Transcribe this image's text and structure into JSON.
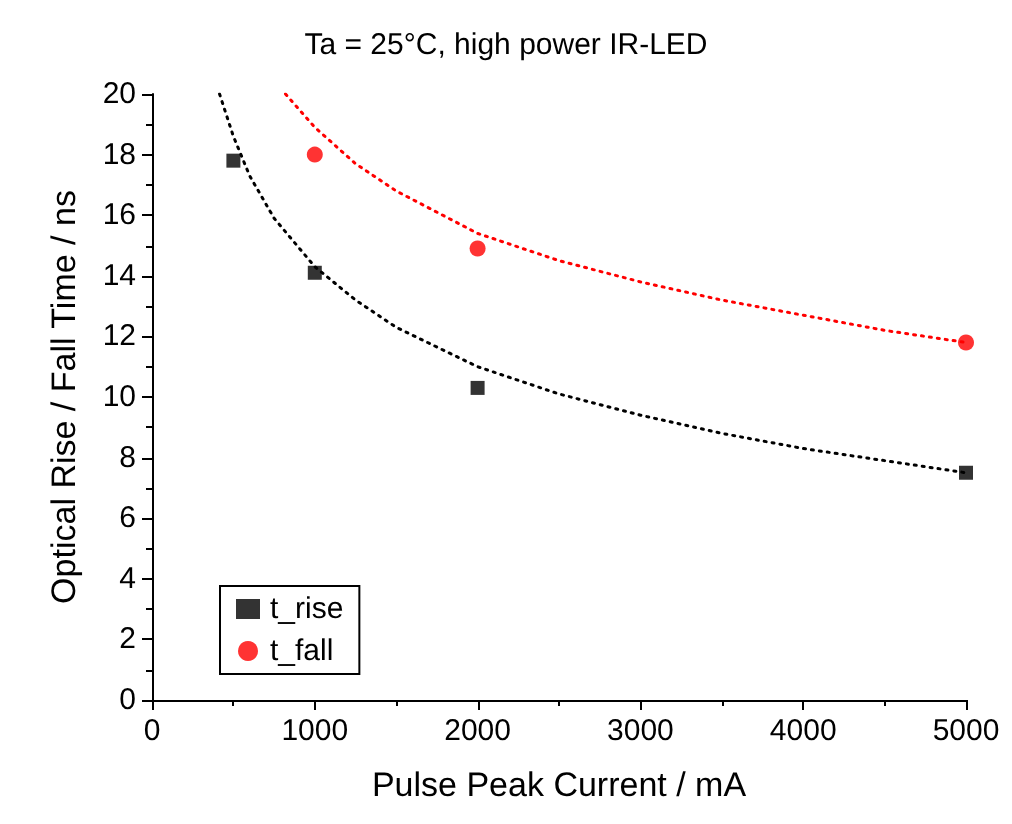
{
  "chart_data": {
    "type": "scatter",
    "title": "Ta = 25°C, high power IR-LED",
    "xlabel": "Pulse Peak Current / mA",
    "ylabel": "Optical Rise / Fall Time / ns",
    "xlim": [
      0,
      5000
    ],
    "xticks": [
      0,
      1000,
      2000,
      3000,
      4000,
      5000
    ],
    "ylim": [
      0,
      20
    ],
    "yticks": [
      0,
      2,
      4,
      6,
      8,
      10,
      12,
      14,
      16,
      18,
      20
    ],
    "grid": false,
    "legend": "bottom left",
    "series": [
      {
        "type": "line",
        "marker": "none",
        "line_style": "dotted",
        "color": "#000000",
        "x": [
          415,
          500,
          600,
          750,
          1000,
          1250,
          1500,
          2000,
          2500,
          3000,
          3500,
          4000,
          4500,
          5000
        ],
        "values": [
          20,
          18.6,
          17.3,
          15.9,
          14.3,
          13.2,
          12.3,
          11.0,
          10.1,
          9.4,
          8.8,
          8.3,
          7.9,
          7.5
        ]
      },
      {
        "type": "line",
        "marker": "none",
        "line_style": "dotted",
        "color": "#ff0000",
        "x": [
          820,
          1000,
          1250,
          1500,
          2000,
          2500,
          3000,
          3500,
          4000,
          4500,
          5000
        ],
        "values": [
          20,
          18.9,
          17.7,
          16.8,
          15.4,
          14.5,
          13.8,
          13.2,
          12.7,
          12.2,
          11.8
        ]
      },
      {
        "name": "t_rise",
        "marker": "square",
        "color": "#000000",
        "x": [
          500,
          1000,
          2000,
          5000
        ],
        "values": [
          17.8,
          14.1,
          10.3,
          7.5
        ]
      },
      {
        "name": "t_fall",
        "marker": "circle",
        "color": "#ff0000",
        "x": [
          1000,
          2000,
          5000
        ],
        "values": [
          18.0,
          14.9,
          11.8
        ]
      }
    ]
  }
}
